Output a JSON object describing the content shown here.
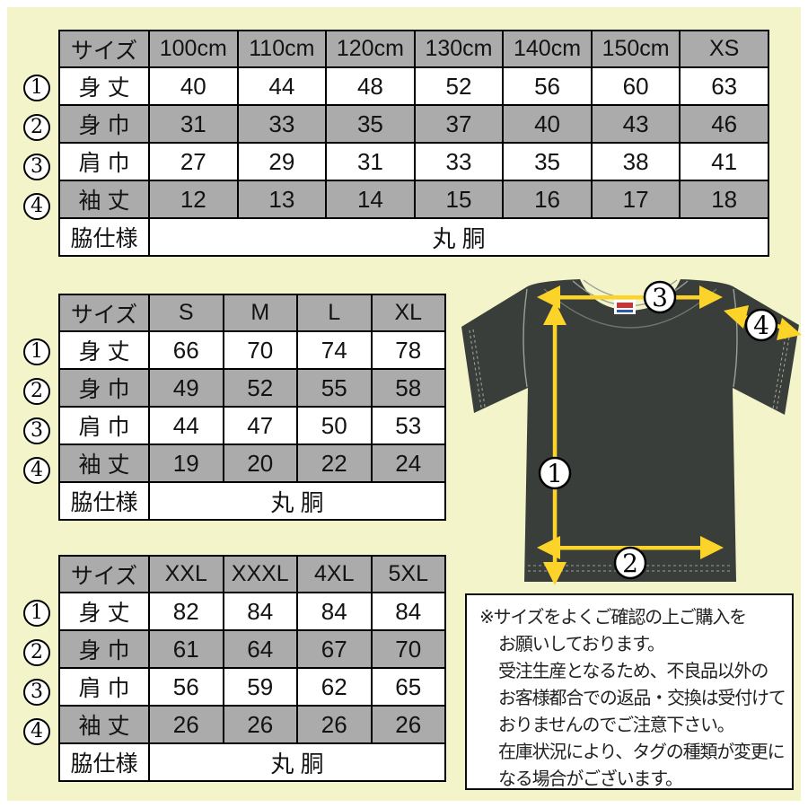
{
  "colors": {
    "bg": "#f3f4ca",
    "gray": "#ababab",
    "ink": "#000000",
    "shirt": "#3a3e3a",
    "seam": "#9aa099",
    "yellow": "#fcd328"
  },
  "legend": {
    "numbers": [
      "1",
      "2",
      "3",
      "4"
    ]
  },
  "tables": [
    {
      "header": [
        "サイズ",
        "100cm",
        "110cm",
        "120cm",
        "130cm",
        "140cm",
        "150cm",
        "XS"
      ],
      "rows": [
        {
          "num": "1",
          "label": "身 丈",
          "values": [
            "40",
            "44",
            "48",
            "52",
            "56",
            "60",
            "63"
          ]
        },
        {
          "num": "2",
          "label": "身 巾",
          "values": [
            "31",
            "33",
            "35",
            "37",
            "40",
            "43",
            "46"
          ]
        },
        {
          "num": "3",
          "label": "肩 巾",
          "values": [
            "27",
            "29",
            "31",
            "33",
            "35",
            "38",
            "41"
          ]
        },
        {
          "num": "4",
          "label": "袖 丈",
          "values": [
            "12",
            "13",
            "14",
            "15",
            "16",
            "17",
            "18"
          ]
        }
      ],
      "footer": {
        "label": "脇仕様",
        "value": "丸 胴"
      }
    },
    {
      "header": [
        "サイズ",
        "S",
        "M",
        "L",
        "XL"
      ],
      "rows": [
        {
          "num": "1",
          "label": "身 丈",
          "values": [
            "66",
            "70",
            "74",
            "78"
          ]
        },
        {
          "num": "2",
          "label": "身 巾",
          "values": [
            "49",
            "52",
            "55",
            "58"
          ]
        },
        {
          "num": "3",
          "label": "肩 巾",
          "values": [
            "44",
            "47",
            "50",
            "53"
          ]
        },
        {
          "num": "4",
          "label": "袖 丈",
          "values": [
            "19",
            "20",
            "22",
            "24"
          ]
        }
      ],
      "footer": {
        "label": "脇仕様",
        "value": "丸 胴"
      }
    },
    {
      "header": [
        "サイズ",
        "XXL",
        "XXXL",
        "4XL",
        "5XL"
      ],
      "rows": [
        {
          "num": "1",
          "label": "身 丈",
          "values": [
            "82",
            "84",
            "84",
            "84"
          ]
        },
        {
          "num": "2",
          "label": "身 巾",
          "values": [
            "61",
            "64",
            "67",
            "70"
          ]
        },
        {
          "num": "3",
          "label": "肩 巾",
          "values": [
            "56",
            "59",
            "62",
            "65"
          ]
        },
        {
          "num": "4",
          "label": "袖 丈",
          "values": [
            "26",
            "26",
            "26",
            "26"
          ]
        }
      ],
      "footer": {
        "label": "脇仕様",
        "value": "丸 胴"
      }
    }
  ],
  "notice": {
    "lines": [
      "※サイズをよくご確認の上ご購入を",
      "お願いしております。",
      "受注生産となるため、不良品以外の",
      "お客様都合での返品・交換は受付けて",
      "おりませんのでご注意下さい。",
      "在庫状況により、タグの種類が変更に",
      "なる場合がございます。"
    ]
  }
}
